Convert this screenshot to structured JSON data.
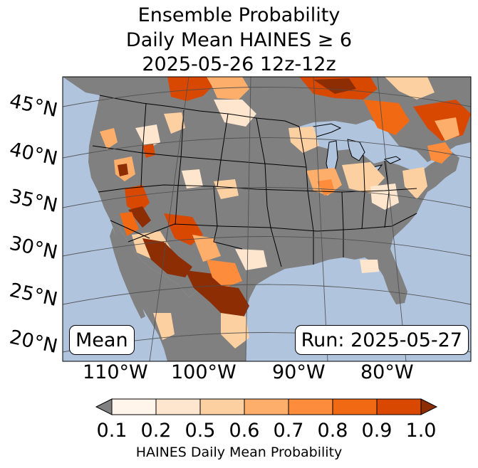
{
  "title": {
    "line1": "Ensemble Probability",
    "line2": "Daily Mean HAINES ≥ 6",
    "line3": "2025-05-26 12z-12z"
  },
  "map": {
    "lat_labels": [
      "45°N",
      "40°N",
      "35°N",
      "30°N",
      "25°N",
      "20°N"
    ],
    "lon_labels": [
      "110°W",
      "100°W",
      "90°W",
      "80°W"
    ],
    "ocean_color": "#b0c4de",
    "land_nodata_color": "#808080",
    "border_color": "#000000",
    "gridline_color": "#4d4d4d"
  },
  "labels": {
    "mean": "Mean",
    "run": "Run: 2025-05-27"
  },
  "colorbar": {
    "title": "HAINES Daily Mean Probability",
    "ticks": [
      "0.1",
      "0.2",
      "0.5",
      "0.6",
      "0.7",
      "0.8",
      "0.9",
      "1.0"
    ],
    "under_color": "#808080",
    "colors": [
      "#fff5eb",
      "#fee6ce",
      "#fdd0a2",
      "#fdae6b",
      "#fd8d3c",
      "#f16913",
      "#d94801"
    ],
    "over_color": "#8c2d04"
  }
}
